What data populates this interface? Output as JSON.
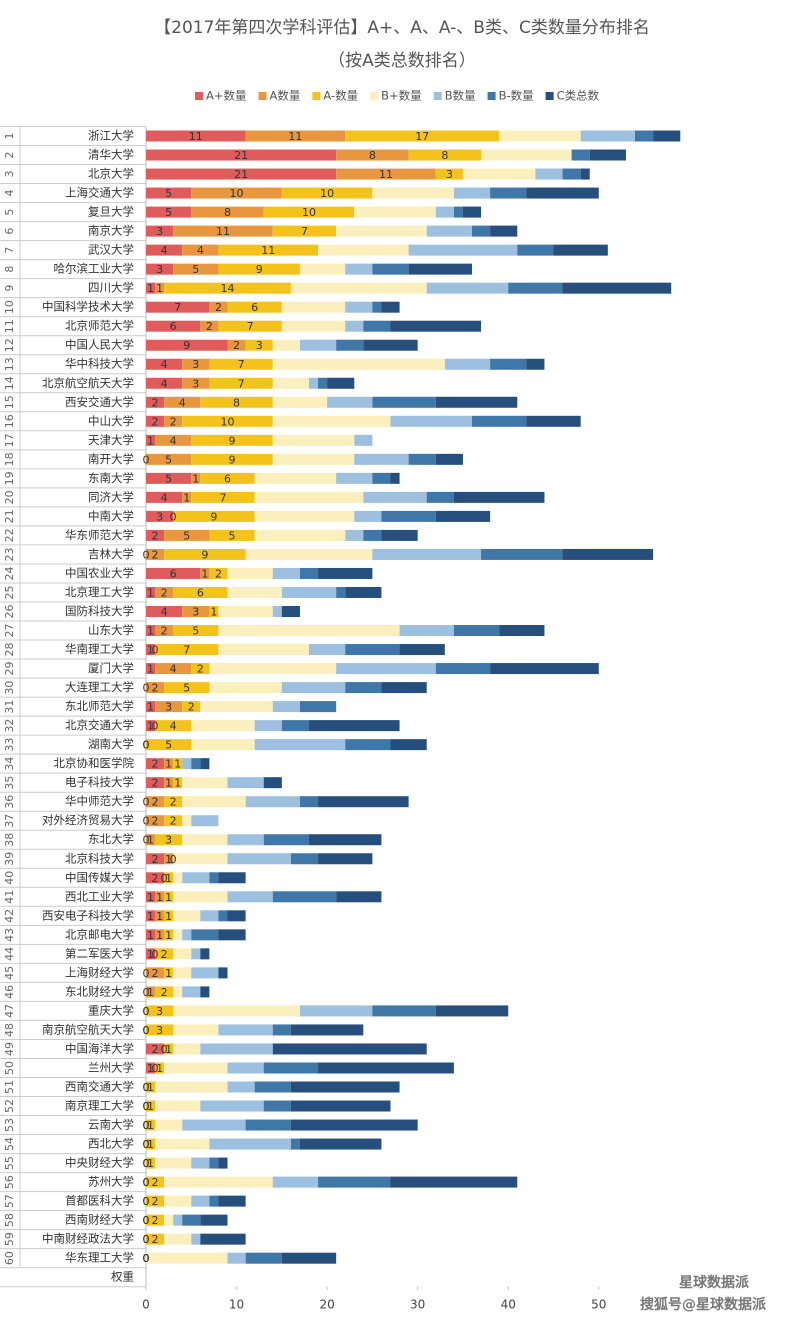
{
  "chart_data": {
    "type": "stacked-barh",
    "title": "【2017年第四次学科评估】A+、A、A-、B类、C类数量分布排名",
    "subtitle": "（按A类总数排名）",
    "categories": [
      "浙江大学",
      "清华大学",
      "北京大学",
      "上海交通大学",
      "复旦大学",
      "南京大学",
      "武汉大学",
      "哈尔滨工业大学",
      "四川大学",
      "中国科学技术大学",
      "北京师范大学",
      "中国人民大学",
      "华中科技大学",
      "北京航空航天大学",
      "西安交通大学",
      "中山大学",
      "天津大学",
      "南开大学",
      "东南大学",
      "同济大学",
      "中南大学",
      "华东师范大学",
      "吉林大学",
      "中国农业大学",
      "北京理工大学",
      "国防科技大学",
      "山东大学",
      "华南理工大学",
      "厦门大学",
      "大连理工大学",
      "东北师范大学",
      "北京交通大学",
      "湖南大学",
      "北京协和医学院",
      "电子科技大学",
      "华中师范大学",
      "对外经济贸易大学",
      "东北大学",
      "北京科技大学",
      "中国传媒大学",
      "西北工业大学",
      "西安电子科技大学",
      "北京邮电大学",
      "第二军医大学",
      "上海财经大学",
      "东北财经大学",
      "重庆大学",
      "南京航空航天大学",
      "中国海洋大学",
      "兰州大学",
      "西南交通大学",
      "南京理工大学",
      "云南大学",
      "西北大学",
      "中央财经大学",
      "苏州大学",
      "首都医科大学",
      "西南财经大学",
      "中南财经政法大学",
      "华东理工大学",
      "权重"
    ],
    "ranks": [
      1,
      2,
      3,
      4,
      5,
      6,
      7,
      8,
      9,
      10,
      11,
      12,
      13,
      14,
      15,
      16,
      17,
      18,
      19,
      20,
      21,
      22,
      23,
      24,
      25,
      26,
      27,
      28,
      29,
      30,
      31,
      32,
      33,
      34,
      35,
      36,
      37,
      38,
      39,
      40,
      41,
      42,
      43,
      44,
      45,
      46,
      47,
      48,
      49,
      50,
      51,
      52,
      53,
      54,
      55,
      56,
      57,
      58,
      59,
      60
    ],
    "series": [
      {
        "name": "A+数量",
        "color": "#e05c5c",
        "labels": true,
        "values": [
          11,
          21,
          21,
          5,
          5,
          3,
          4,
          3,
          1,
          7,
          6,
          9,
          4,
          4,
          2,
          2,
          1,
          0,
          5,
          4,
          3,
          2,
          0,
          6,
          1,
          4,
          1,
          1,
          1,
          0,
          1,
          1,
          0,
          2,
          2,
          0,
          0,
          0,
          2,
          2,
          1,
          1,
          1,
          1,
          0,
          0,
          0,
          0,
          2,
          1,
          0,
          0,
          0,
          0,
          0,
          0,
          0,
          0,
          0,
          0,
          null
        ]
      },
      {
        "name": "A数量",
        "color": "#e8973e",
        "labels": true,
        "values": [
          11,
          8,
          11,
          10,
          8,
          11,
          4,
          5,
          1,
          2,
          2,
          2,
          3,
          3,
          4,
          2,
          4,
          5,
          1,
          1,
          0,
          5,
          2,
          1,
          2,
          3,
          2,
          0,
          4,
          2,
          3,
          0,
          0,
          1,
          1,
          2,
          2,
          1,
          1,
          0,
          1,
          1,
          1,
          0,
          2,
          1,
          0,
          0,
          0,
          0,
          0,
          0,
          0,
          0,
          0,
          0,
          0,
          0,
          0,
          0,
          null
        ]
      },
      {
        "name": "A-数量",
        "color": "#f3c31c",
        "labels": true,
        "values": [
          17,
          8,
          3,
          10,
          10,
          7,
          11,
          9,
          14,
          6,
          7,
          3,
          7,
          7,
          8,
          10,
          9,
          9,
          6,
          7,
          9,
          5,
          9,
          2,
          6,
          1,
          5,
          7,
          2,
          5,
          2,
          4,
          5,
          1,
          1,
          2,
          2,
          3,
          0,
          1,
          1,
          1,
          1,
          2,
          1,
          2,
          3,
          3,
          1,
          1,
          1,
          1,
          1,
          1,
          1,
          2,
          2,
          2,
          2,
          0,
          null
        ]
      },
      {
        "name": "B+数量",
        "color": "#fbefbd",
        "labels": false,
        "values": [
          9,
          10,
          8,
          9,
          9,
          10,
          10,
          5,
          15,
          7,
          7,
          3,
          19,
          4,
          6,
          13,
          9,
          9,
          9,
          12,
          11,
          10,
          14,
          5,
          6,
          6,
          20,
          10,
          14,
          8,
          8,
          7,
          7,
          0,
          5,
          7,
          1,
          5,
          6,
          1,
          6,
          3,
          1,
          2,
          2,
          1,
          14,
          5,
          3,
          7,
          8,
          5,
          3,
          6,
          4,
          12,
          3,
          1,
          3,
          9,
          null
        ]
      },
      {
        "name": "B数量",
        "color": "#9dc0e0",
        "labels": false,
        "values": [
          6,
          0,
          3,
          4,
          2,
          5,
          12,
          3,
          9,
          3,
          2,
          4,
          5,
          1,
          5,
          9,
          2,
          6,
          4,
          7,
          3,
          2,
          12,
          3,
          6,
          1,
          6,
          4,
          11,
          7,
          3,
          3,
          10,
          1,
          4,
          6,
          3,
          4,
          7,
          3,
          5,
          2,
          1,
          1,
          3,
          2,
          8,
          6,
          8,
          4,
          3,
          7,
          7,
          9,
          2,
          5,
          2,
          1,
          1,
          2,
          null
        ]
      },
      {
        "name": "B-数量",
        "color": "#3f77a8",
        "labels": false,
        "values": [
          2,
          2,
          2,
          4,
          1,
          2,
          4,
          4,
          6,
          1,
          3,
          3,
          4,
          1,
          7,
          6,
          0,
          3,
          2,
          3,
          6,
          2,
          9,
          2,
          1,
          0,
          5,
          6,
          6,
          4,
          4,
          3,
          5,
          1,
          0,
          2,
          0,
          5,
          3,
          1,
          7,
          1,
          3,
          0,
          0,
          0,
          7,
          2,
          0,
          6,
          4,
          3,
          5,
          1,
          1,
          8,
          1,
          2,
          0,
          4,
          null
        ]
      },
      {
        "name": "C类总数",
        "color": "#264f7d",
        "labels": false,
        "values": [
          3,
          4,
          1,
          8,
          2,
          3,
          6,
          7,
          12,
          2,
          10,
          6,
          2,
          3,
          9,
          6,
          0,
          3,
          1,
          10,
          6,
          4,
          10,
          6,
          4,
          2,
          5,
          5,
          12,
          5,
          0,
          10,
          4,
          1,
          2,
          10,
          0,
          8,
          6,
          3,
          5,
          2,
          3,
          1,
          1,
          1,
          8,
          8,
          17,
          15,
          12,
          11,
          14,
          9,
          1,
          14,
          3,
          3,
          5,
          6,
          null
        ]
      }
    ],
    "xlim": [
      0,
      72
    ],
    "xticks": [
      0,
      10,
      20,
      30,
      40,
      50
    ],
    "grid": false,
    "watermark": {
      "logo_text": "星球数据派",
      "text": "搜狐号@星球数据派"
    }
  }
}
